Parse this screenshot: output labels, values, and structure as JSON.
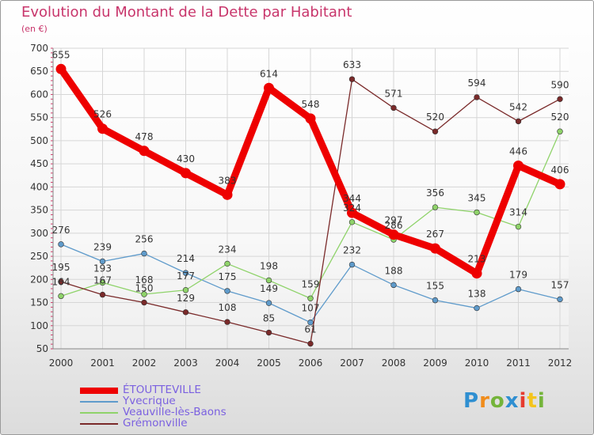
{
  "chart_data": {
    "type": "line",
    "title": "Evolution du Montant de la Dette par Habitant",
    "subtitle": "(en €)",
    "x": [
      "2000",
      "2001",
      "2002",
      "2003",
      "2004",
      "2005",
      "2006",
      "2007",
      "2008",
      "2009",
      "2010",
      "2011",
      "2012"
    ],
    "ylim": [
      50,
      700
    ],
    "yticks": [
      50,
      100,
      150,
      200,
      250,
      300,
      350,
      400,
      450,
      500,
      550,
      600,
      650,
      700
    ],
    "grid": true,
    "legend_position": "bottom-left",
    "series": [
      {
        "name": "ÉTOUTTEVILLE",
        "color": "#ee0000",
        "values": [
          655,
          526,
          478,
          430,
          383,
          614,
          548,
          344,
          297,
          267,
          213,
          446,
          406
        ]
      },
      {
        "name": "Yvecrique",
        "color": "#5f9bcb",
        "values": [
          276,
          239,
          256,
          214,
          175,
          149,
          107,
          232,
          188,
          155,
          138,
          179,
          157
        ]
      },
      {
        "name": "Veauville-lès-Baons",
        "color": "#8fd36a",
        "values": [
          164,
          193,
          168,
          177,
          234,
          198,
          159,
          324,
          286,
          356,
          345,
          314,
          520
        ]
      },
      {
        "name": "Grémonville",
        "color": "#7a2a2a",
        "values": [
          195,
          167,
          150,
          129,
          108,
          85,
          61,
          633,
          571,
          520,
          594,
          542,
          590
        ]
      }
    ]
  },
  "logo": {
    "letters": [
      "P",
      "r",
      "o",
      "x",
      "i",
      "t",
      "i"
    ]
  }
}
